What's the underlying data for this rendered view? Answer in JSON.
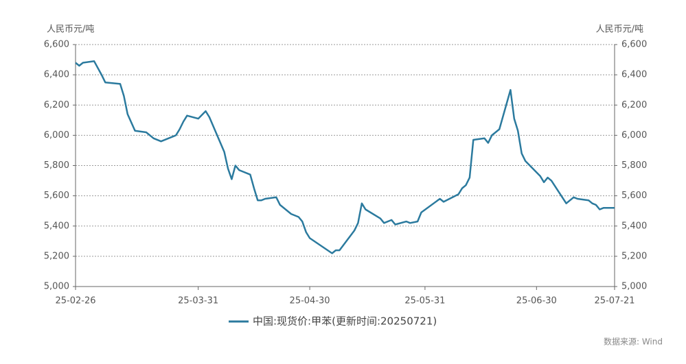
{
  "chart_data": {
    "type": "line",
    "y_label": "人民币元/吨",
    "y2_label": "人民币元/吨",
    "source": "数据来源: Wind",
    "x": [
      "25-02-26",
      "25-02-27",
      "25-02-28",
      "25-03-03",
      "25-03-05",
      "25-03-06",
      "25-03-10",
      "25-03-11",
      "25-03-12",
      "25-03-14",
      "25-03-17",
      "25-03-19",
      "25-03-21",
      "25-03-25",
      "25-03-26",
      "25-03-27",
      "25-03-28",
      "25-03-31",
      "25-04-02",
      "25-04-03",
      "25-04-07",
      "25-04-08",
      "25-04-09",
      "25-04-10",
      "25-04-11",
      "25-04-14",
      "25-04-15",
      "25-04-16",
      "25-04-17",
      "25-04-18",
      "25-04-21",
      "25-04-22",
      "25-04-25",
      "25-04-27",
      "25-04-28",
      "25-04-29",
      "25-04-30",
      "25-05-06",
      "25-05-07",
      "25-05-08",
      "25-05-12",
      "25-05-13",
      "25-05-14",
      "25-05-15",
      "25-05-19",
      "25-05-20",
      "25-05-22",
      "25-05-23",
      "25-05-26",
      "25-05-27",
      "25-05-29",
      "25-05-30",
      "25-06-04",
      "25-06-05",
      "25-06-09",
      "25-06-10",
      "25-06-11",
      "25-06-12",
      "25-06-13",
      "25-06-16",
      "25-06-17",
      "25-06-18",
      "25-06-20",
      "25-06-23",
      "25-06-24",
      "25-06-25",
      "25-06-26",
      "25-06-27",
      "25-07-01",
      "25-07-02",
      "25-07-03",
      "25-07-04",
      "25-07-08",
      "25-07-10",
      "25-07-11",
      "25-07-14",
      "25-07-15",
      "25-07-16",
      "25-07-17",
      "25-07-18",
      "25-07-21"
    ],
    "series": [
      {
        "name": "中国:现货价:甲苯(更新时间:20250721)",
        "color": "#2b7a9e",
        "values": [
          6480,
          6460,
          6480,
          6490,
          6400,
          6350,
          6340,
          6260,
          6140,
          6030,
          6020,
          5980,
          5960,
          6000,
          6040,
          6090,
          6130,
          6110,
          6160,
          6120,
          5890,
          5780,
          5710,
          5800,
          5770,
          5740,
          5650,
          5570,
          5570,
          5580,
          5590,
          5540,
          5480,
          5460,
          5430,
          5360,
          5320,
          5220,
          5240,
          5240,
          5370,
          5420,
          5550,
          5510,
          5450,
          5420,
          5440,
          5410,
          5430,
          5420,
          5430,
          5490,
          5580,
          5560,
          5610,
          5650,
          5670,
          5720,
          5970,
          5980,
          5950,
          6000,
          6040,
          6300,
          6110,
          6030,
          5880,
          5830,
          5730,
          5690,
          5720,
          5700,
          5550,
          5590,
          5580,
          5570,
          5550,
          5540,
          5510,
          5520,
          5520
        ]
      }
    ],
    "xlim": [
      "25-02-26",
      "25-07-21"
    ],
    "xticks": [
      "25-02-26",
      "25-03-31",
      "25-04-30",
      "25-05-31",
      "25-06-30",
      "25-07-21"
    ],
    "ylim": [
      5000,
      6600
    ],
    "yticks": [
      {
        "value": 5000,
        "label": "5,000"
      },
      {
        "value": 5200,
        "label": "5,200"
      },
      {
        "value": 5400,
        "label": "5,400"
      },
      {
        "value": 5600,
        "label": "5,600"
      },
      {
        "value": 5800,
        "label": "5,800"
      },
      {
        "value": 6000,
        "label": "6,000"
      },
      {
        "value": 6200,
        "label": "6,200"
      },
      {
        "value": 6400,
        "label": "6,400"
      },
      {
        "value": 6600,
        "label": "6,600"
      }
    ],
    "y2lim": [
      5000,
      6600
    ],
    "y2ticks": [
      {
        "value": 5000,
        "label": "5,000"
      },
      {
        "value": 5200,
        "label": "5,200"
      },
      {
        "value": 5400,
        "label": "5,400"
      },
      {
        "value": 5600,
        "label": "5,600"
      },
      {
        "value": 5800,
        "label": "5,800"
      },
      {
        "value": 6000,
        "label": "6,000"
      },
      {
        "value": 6200,
        "label": "6,200"
      },
      {
        "value": 6400,
        "label": "6,400"
      },
      {
        "value": 6600,
        "label": "6,600"
      }
    ],
    "grid": true
  }
}
